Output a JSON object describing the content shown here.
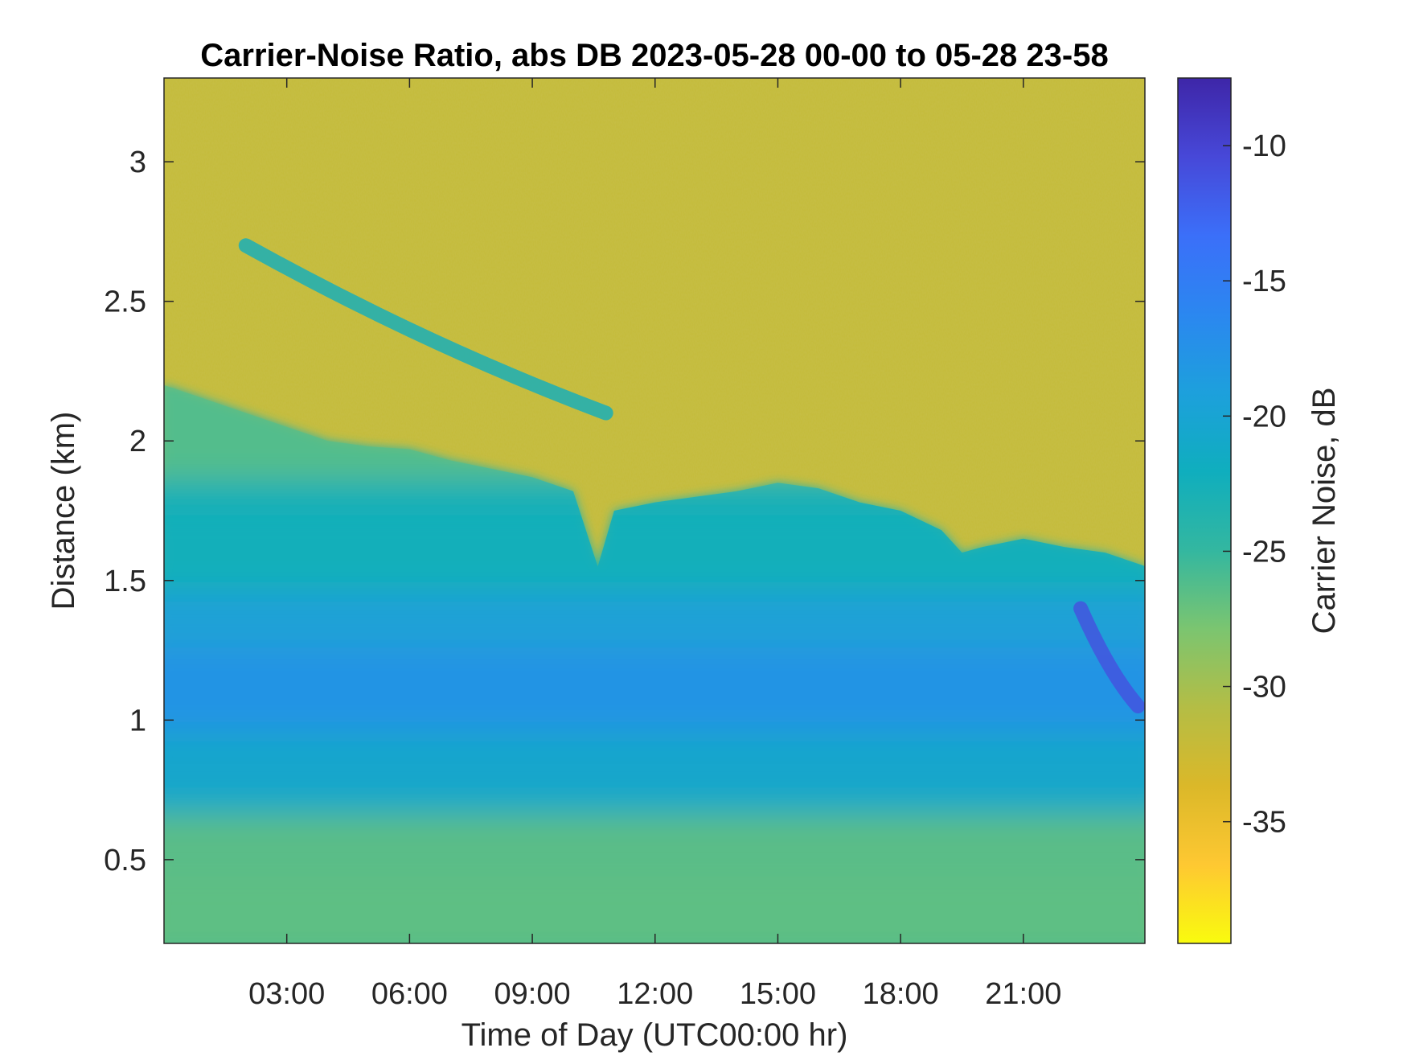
{
  "chart_data": {
    "type": "heatmap",
    "title": "Carrier-Noise Ratio, abs DB 2023-05-28 00-00 to 05-28 23-58",
    "xlabel": "Time of Day (UTC00:00 hr)",
    "ylabel": "Distance (km)",
    "colorbar_label": "Carrier Noise, dB",
    "xlim": [
      0,
      23.97
    ],
    "ylim": [
      0.2,
      3.3
    ],
    "clim": [
      -39.5,
      -7.5
    ],
    "x_ticks": [
      {
        "value": 3,
        "label": "03:00"
      },
      {
        "value": 6,
        "label": "06:00"
      },
      {
        "value": 9,
        "label": "09:00"
      },
      {
        "value": 12,
        "label": "12:00"
      },
      {
        "value": 15,
        "label": "15:00"
      },
      {
        "value": 18,
        "label": "18:00"
      },
      {
        "value": 21,
        "label": "21:00"
      }
    ],
    "y_ticks": [
      {
        "value": 0.5,
        "label": "0.5"
      },
      {
        "value": 1,
        "label": "1"
      },
      {
        "value": 1.5,
        "label": "1.5"
      },
      {
        "value": 2,
        "label": "2"
      },
      {
        "value": 2.5,
        "label": "2.5"
      },
      {
        "value": 3,
        "label": "3"
      }
    ],
    "colorbar_ticks": [
      {
        "value": -10,
        "label": "-10"
      },
      {
        "value": -15,
        "label": "-15"
      },
      {
        "value": -20,
        "label": "-20"
      },
      {
        "value": -25,
        "label": "-25"
      },
      {
        "value": -30,
        "label": "-30"
      },
      {
        "value": -35,
        "label": "-35"
      }
    ],
    "colormap": [
      "#F9FB0E",
      "#FEC832",
      "#DBB829",
      "#B4BD45",
      "#7BC570",
      "#33B7A0",
      "#0FAEBE",
      "#1DA0DC",
      "#2B87F0",
      "#3B6FF9",
      "#4748D8",
      "#3E26A8"
    ],
    "background_cnr_db": -32,
    "boundary_height_km": [
      [
        0,
        2.2
      ],
      [
        1,
        2.15
      ],
      [
        2,
        2.1
      ],
      [
        3,
        2.05
      ],
      [
        4,
        2.0
      ],
      [
        5,
        1.98
      ],
      [
        6,
        1.97
      ],
      [
        7,
        1.93
      ],
      [
        8,
        1.9
      ],
      [
        9,
        1.87
      ],
      [
        10,
        1.82
      ],
      [
        10.6,
        1.55
      ],
      [
        11,
        1.75
      ],
      [
        12,
        1.78
      ],
      [
        13,
        1.8
      ],
      [
        14,
        1.82
      ],
      [
        15,
        1.85
      ],
      [
        16,
        1.83
      ],
      [
        17,
        1.78
      ],
      [
        18,
        1.75
      ],
      [
        19,
        1.68
      ],
      [
        19.5,
        1.6
      ],
      [
        20,
        1.62
      ],
      [
        21,
        1.65
      ],
      [
        22,
        1.62
      ],
      [
        23,
        1.6
      ],
      [
        24,
        1.55
      ]
    ],
    "profile_layers": [
      {
        "x": [
          0,
          3,
          6,
          9,
          12,
          15,
          18,
          21,
          24
        ],
        "y_km": 2.0,
        "value_db": -26.5
      },
      {
        "x": [
          0,
          3,
          6,
          9,
          12,
          15,
          18,
          21,
          24
        ],
        "y_km": 1.6,
        "value_db": -22
      },
      {
        "x": [
          0,
          3,
          6,
          9,
          12,
          15,
          18,
          21,
          24
        ],
        "y_km": 1.2,
        "value_db": -19
      },
      {
        "x": [
          0,
          3,
          6,
          9,
          12,
          15,
          18,
          21,
          24
        ],
        "y_km": 1.0,
        "value_db": -17.5
      },
      {
        "x": [
          0,
          3,
          6,
          9,
          12,
          15,
          18,
          21,
          24
        ],
        "y_km": 0.7,
        "value_db": -21
      },
      {
        "x": [
          0,
          3,
          6,
          9,
          12,
          15,
          18,
          21,
          24
        ],
        "y_km": 0.4,
        "value_db": -27
      }
    ],
    "features": [
      {
        "name": "elevated layer",
        "x_start": 2.0,
        "x_end": 10.8,
        "y_start_km": 2.7,
        "y_end_km": 2.1,
        "value_db": -22
      },
      {
        "name": "strong return",
        "x_start": 22.4,
        "x_end": 23.8,
        "y_start_km": 1.4,
        "y_end_km": 1.05,
        "value_db": -11
      }
    ]
  }
}
